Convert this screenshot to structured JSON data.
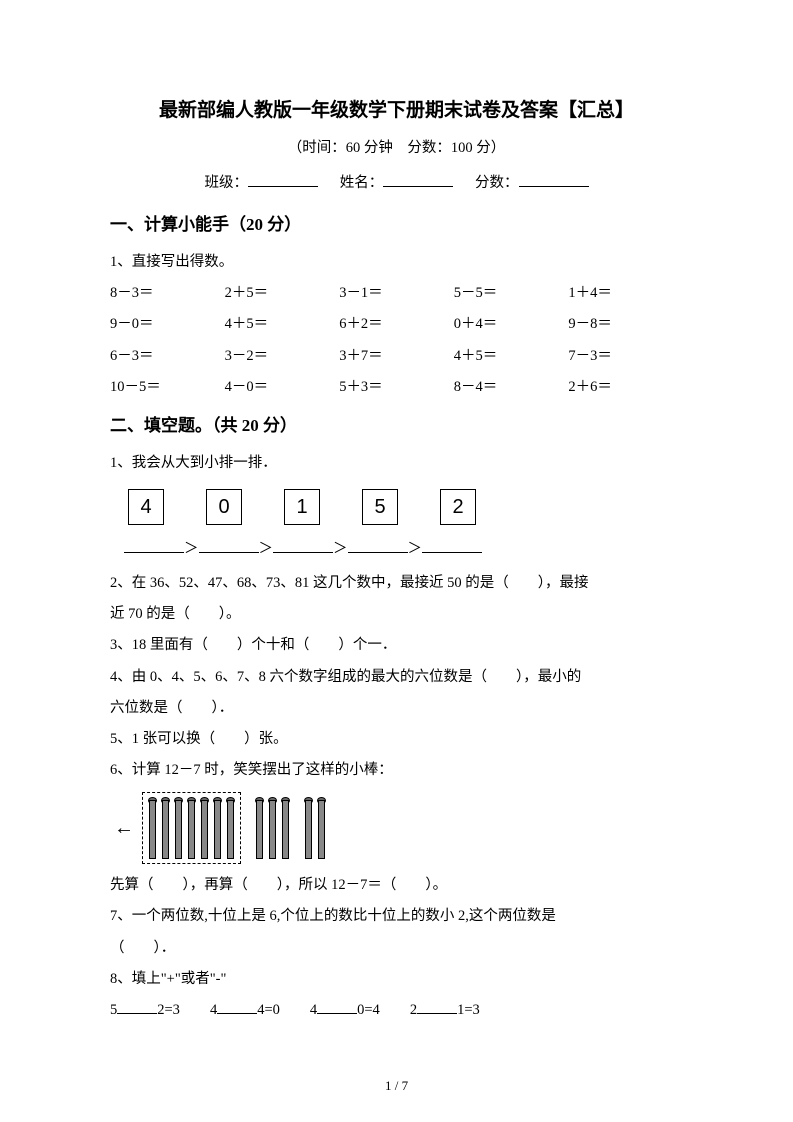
{
  "title": "最新部编人教版一年级数学下册期末试卷及答案【汇总】",
  "subtitle_prefix": "（时间：",
  "time": "60 分钟",
  "subtitle_mid": "　分数：",
  "score": "100 分",
  "subtitle_suffix": "）",
  "info": {
    "class_label": "班级：",
    "name_label": "姓名：",
    "score_label": "分数："
  },
  "section1": {
    "head": "一、计算小能手（20 分）",
    "q1_label": "1、直接写出得数。",
    "items": [
      "8－3＝",
      "2＋5＝",
      "3－1＝",
      "5－5＝",
      "1＋4＝",
      "9－0＝",
      "4＋5＝",
      "6＋2＝",
      "0＋4＝",
      "9－8＝",
      "6－3＝",
      "3－2＝",
      "3＋7＝",
      "4＋5＝",
      "7－3＝",
      "10－5＝",
      "4－0＝",
      "5＋3＝",
      "8－4＝",
      "2＋6＝"
    ]
  },
  "section2": {
    "head": "二、填空题。（共 20 分）",
    "q1": "1、我会从大到小排一排．",
    "boxes": [
      "4",
      "0",
      "1",
      "5",
      "2"
    ],
    "q2a": "2、在 36、52、47、68、73、81 这几个数中，最接近 50 的是（　　），最接",
    "q2b": "近 70 的是（　　）。",
    "q3": "3、18 里面有（　　）个十和（　　）个一．",
    "q4a": "4、由 0、4、5、6、7、8 六个数字组成的最大的六位数是（　　），最小的",
    "q4b": "六位数是（　　）．",
    "q5": "5、1 张可以换（　　）张。",
    "q6": "6、计算 12－7 时，笑笑摆出了这样的小棒：",
    "q6_ans": "先算（　　），再算（　　），所以 12－7＝（　　）。",
    "q7a": "7、一个两位数,十位上是 6,个位上的数比十位上的数小 2,这个两位数是",
    "q7b": "（　　）．",
    "q8": "8、填上\"+\"或者\"-\"",
    "q8_items": [
      "5",
      "2=3",
      "4",
      "4=0",
      "4",
      "0=4",
      "2",
      "1=3"
    ],
    "rods": {
      "group1": 7,
      "group2": 3,
      "group3": 2
    }
  },
  "footer": {
    "page": "1",
    "sep": " / ",
    "total": "7"
  }
}
